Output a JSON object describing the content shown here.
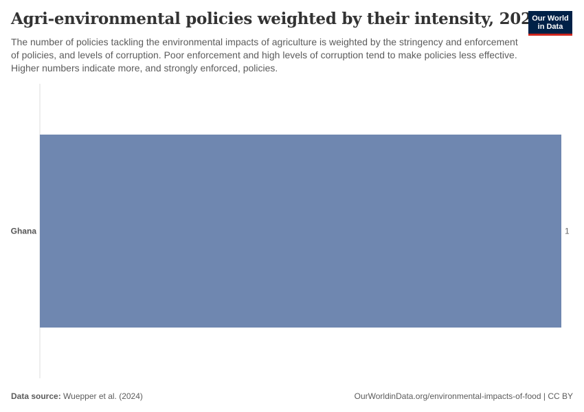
{
  "title": "Agri-environmental policies weighted by their intensity, 2022",
  "subtitle": "The number of policies tackling the environmental impacts of agriculture is weighted by the stringency and enforcement of policies, and levels of corruption. Poor enforcement and high levels of corruption tend to make policies less effective. Higher numbers indicate more, and strongly enforced, policies.",
  "logo": {
    "line1": "Our World",
    "line2": "in Data"
  },
  "footer": {
    "source_label": "Data source:",
    "source_text": "Wuepper et al. (2024)",
    "url_text": "OurWorldinData.org/environmental-impacts-of-food | CC BY"
  },
  "colors": {
    "bar": "#6f87b0",
    "axis": "#dddddd",
    "logo_bg": "#002147",
    "logo_accent": "#ce261e"
  },
  "chart_data": {
    "type": "bar",
    "orientation": "horizontal",
    "categories": [
      "Ghana"
    ],
    "values": [
      1
    ],
    "value_labels": [
      "1"
    ],
    "xlim": [
      0,
      1
    ]
  }
}
